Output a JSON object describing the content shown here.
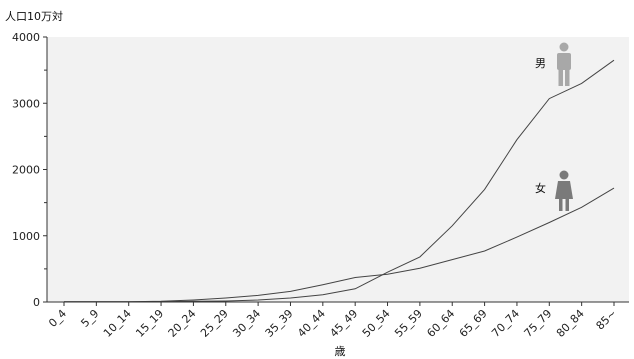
{
  "chart_data": {
    "type": "line",
    "ylabel": "人口10万対",
    "xlabel": "歳",
    "ylim": [
      0,
      4000
    ],
    "yticks": [
      0,
      1000,
      2000,
      3000,
      4000
    ],
    "ytick_labels": [
      "0",
      "1000",
      "2000",
      "3000",
      "4000"
    ],
    "grid": false,
    "categories": [
      "0_4",
      "5_9",
      "10_14",
      "15_19",
      "20_24",
      "25_29",
      "30_34",
      "35_39",
      "40_44",
      "45_49",
      "50_54",
      "55_59",
      "60_64",
      "65_69",
      "70_74",
      "75_79",
      "80_84",
      "85~"
    ],
    "series": [
      {
        "name": "男",
        "icon": "male-figure-icon",
        "color": "#a8a8a8",
        "values": [
          5,
          5,
          5,
          5,
          10,
          15,
          30,
          60,
          110,
          200,
          450,
          680,
          1150,
          1700,
          2450,
          3070,
          3300,
          3650
        ]
      },
      {
        "name": "女",
        "icon": "female-figure-icon",
        "color": "#7a7a7a",
        "values": [
          5,
          5,
          5,
          10,
          30,
          60,
          100,
          160,
          260,
          370,
          420,
          510,
          640,
          770,
          980,
          1200,
          1430,
          1720
        ]
      }
    ]
  }
}
